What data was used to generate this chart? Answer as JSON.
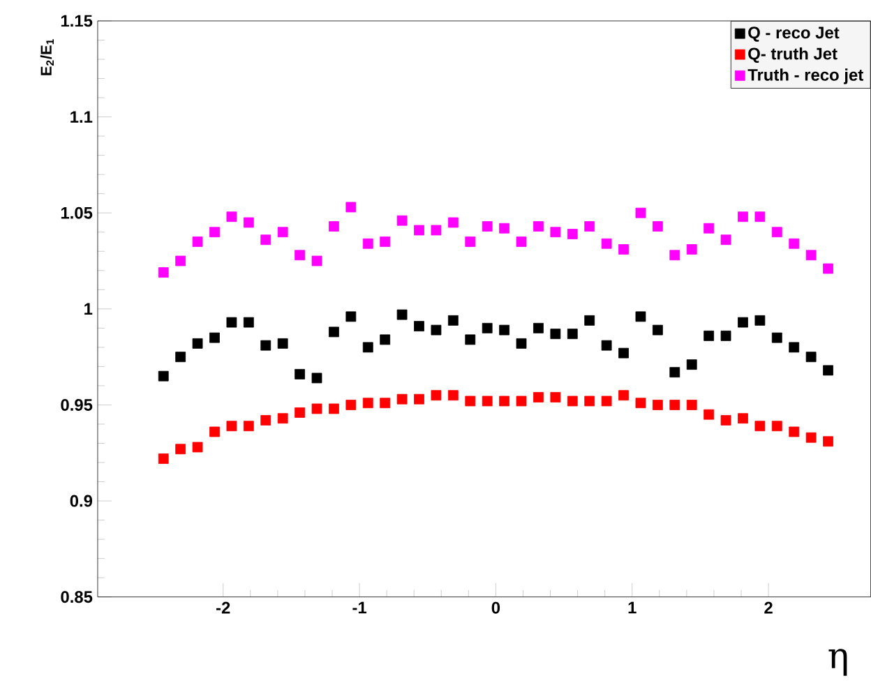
{
  "chart_data": {
    "type": "scatter",
    "xlabel": "η",
    "ylabel": "E$_{2}$/E$_{1}$",
    "x": [
      -2.4375,
      -2.3125,
      -2.1875,
      -2.0625,
      -1.9375,
      -1.8125,
      -1.6875,
      -1.5625,
      -1.4375,
      -1.3125,
      -1.1875,
      -1.0625,
      -0.9375,
      -0.8125,
      -0.6875,
      -0.5625,
      -0.4375,
      -0.3125,
      -0.1875,
      -0.0625,
      0.0625,
      0.1875,
      0.3125,
      0.4375,
      0.5625,
      0.6875,
      0.8125,
      0.9375,
      1.0625,
      1.1875,
      1.3125,
      1.4375,
      1.5625,
      1.6875,
      1.8125,
      1.9375,
      2.0625,
      2.1875,
      2.3125,
      2.4375
    ],
    "series": [
      {
        "name": "Q - reco Jet",
        "color": "#000000",
        "values": [
          0.965,
          0.975,
          0.982,
          0.985,
          0.993,
          0.993,
          0.981,
          0.982,
          0.966,
          0.964,
          0.988,
          0.996,
          0.98,
          0.984,
          0.997,
          0.991,
          0.989,
          0.994,
          0.984,
          0.99,
          0.989,
          0.982,
          0.99,
          0.987,
          0.987,
          0.994,
          0.981,
          0.977,
          0.996,
          0.989,
          0.967,
          0.971,
          0.986,
          0.986,
          0.993,
          0.994,
          0.985,
          0.98,
          0.975,
          0.968
        ]
      },
      {
        "name": "Q- truth Jet",
        "color": "#ff0000",
        "values": [
          0.922,
          0.927,
          0.928,
          0.936,
          0.939,
          0.939,
          0.942,
          0.943,
          0.946,
          0.948,
          0.948,
          0.95,
          0.951,
          0.951,
          0.953,
          0.953,
          0.955,
          0.955,
          0.952,
          0.952,
          0.952,
          0.952,
          0.954,
          0.954,
          0.952,
          0.952,
          0.952,
          0.955,
          0.951,
          0.95,
          0.95,
          0.95,
          0.945,
          0.942,
          0.943,
          0.939,
          0.939,
          0.936,
          0.933,
          0.931
        ]
      },
      {
        "name": "Truth - reco jet",
        "color": "#ff00ff",
        "values": [
          1.019,
          1.025,
          1.035,
          1.04,
          1.048,
          1.045,
          1.036,
          1.04,
          1.028,
          1.025,
          1.043,
          1.053,
          1.034,
          1.035,
          1.046,
          1.041,
          1.041,
          1.045,
          1.035,
          1.043,
          1.042,
          1.035,
          1.043,
          1.04,
          1.039,
          1.043,
          1.034,
          1.031,
          1.05,
          1.043,
          1.028,
          1.031,
          1.042,
          1.036,
          1.048,
          1.048,
          1.04,
          1.034,
          1.028,
          1.021
        ]
      }
    ],
    "xlim": [
      -2.92,
      2.75
    ],
    "ylim": [
      0.85,
      1.15
    ],
    "xticks": [
      -2,
      -1,
      0,
      1,
      2
    ],
    "yticks": [
      0.85,
      0.9,
      0.95,
      1,
      1.05,
      1.1,
      1.15
    ],
    "legend": "top right",
    "marker": "square",
    "grid": false
  }
}
